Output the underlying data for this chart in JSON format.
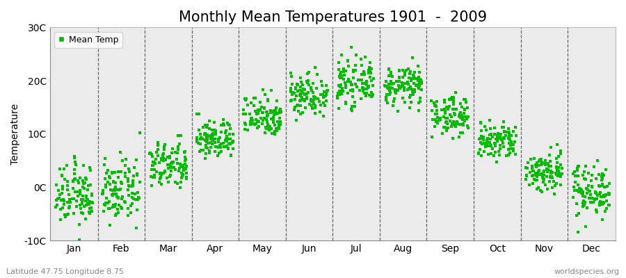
{
  "title": "Monthly Mean Temperatures 1901  -  2009",
  "ylabel": "Temperature",
  "ylim": [
    -10,
    30
  ],
  "yticks": [
    -10,
    0,
    10,
    20,
    30
  ],
  "ytick_labels": [
    "-10C",
    "0C",
    "10C",
    "20C",
    "30C"
  ],
  "months": [
    "Jan",
    "Feb",
    "Mar",
    "Apr",
    "May",
    "Jun",
    "Jul",
    "Aug",
    "Sep",
    "Oct",
    "Nov",
    "Dec"
  ],
  "monthly_mean": [
    -1.5,
    -0.8,
    4.0,
    9.0,
    13.5,
    17.5,
    19.5,
    19.0,
    13.5,
    8.5,
    3.0,
    -0.5
  ],
  "monthly_std": [
    2.8,
    2.8,
    2.2,
    1.8,
    2.0,
    2.0,
    2.0,
    1.8,
    1.8,
    1.8,
    2.0,
    2.5
  ],
  "n_years": 109,
  "dot_color": "#00BB00",
  "bg_color": "#EBEBEB",
  "title_fontsize": 15,
  "axis_fontsize": 10,
  "tick_fontsize": 10,
  "legend_label": "Mean Temp",
  "bottom_left_text": "Latitude 47.75 Longitude 8.75",
  "bottom_right_text": "worldspecies.org",
  "marker": "s",
  "marker_size": 3
}
